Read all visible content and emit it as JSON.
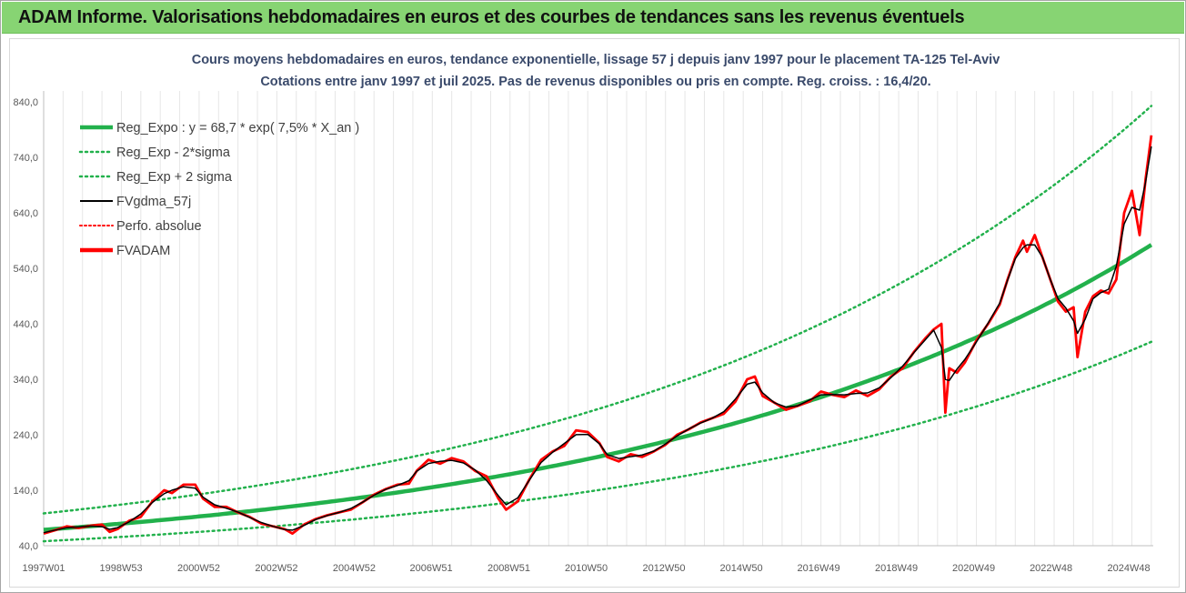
{
  "banner": {
    "title": "ADAM Informe. Valorisations hebdomadaires en euros et des courbes de tendances sans les revenus éventuels",
    "color": "#87d473"
  },
  "chart_data": {
    "type": "line",
    "title_line1": "Cours moyens hebdomadaires en euros, tendance exponentielle, lissage 57 j depuis janv 1997 pour le placement TA-125 Tel-Aviv",
    "title_line2": "Cotations entre janv 1997 et juil 2025. Pas de revenus disponibles ou pris en compte. Reg. croiss. : 16,4/20.",
    "xlabel": "",
    "ylabel": "",
    "x_range": [
      1997.0,
      2025.55
    ],
    "ylim": [
      40,
      860
    ],
    "y_ticks": [
      "40,0",
      "140,0",
      "240,0",
      "340,0",
      "440,0",
      "540,0",
      "640,0",
      "740,0",
      "840,0"
    ],
    "y_tick_values": [
      40,
      140,
      240,
      340,
      440,
      540,
      640,
      740,
      840
    ],
    "x_ticks": [
      {
        "label": "1997W01",
        "x": 1997.0
      },
      {
        "label": "1998W53",
        "x": 1998.99
      },
      {
        "label": "2000W52",
        "x": 2000.99
      },
      {
        "label": "2002W52",
        "x": 2002.99
      },
      {
        "label": "2004W52",
        "x": 2004.99
      },
      {
        "label": "2006W51",
        "x": 2006.97
      },
      {
        "label": "2008W51",
        "x": 2008.97
      },
      {
        "label": "2010W50",
        "x": 2010.96
      },
      {
        "label": "2012W50",
        "x": 2012.96
      },
      {
        "label": "2014W50",
        "x": 2014.95
      },
      {
        "label": "2016W49",
        "x": 2016.94
      },
      {
        "label": "2018W49",
        "x": 2018.94
      },
      {
        "label": "2020W49",
        "x": 2020.93
      },
      {
        "label": "2022W48",
        "x": 2022.92
      },
      {
        "label": "2024W48",
        "x": 2024.92
      }
    ],
    "grid": "vertical",
    "legend_position": "top-left",
    "regression": {
      "a": 68.7,
      "rate": 0.075,
      "x0": 1997.0,
      "sigma_lower_factor": 0.7,
      "sigma_upper_factor": 1.43
    },
    "series": [
      {
        "name": "Reg_Expo : y = 68,7 * exp( 7,5% *  X_an )",
        "style": "solid-thick",
        "color": "#22b14c"
      },
      {
        "name": "Reg_Exp - 2*sigma",
        "style": "dotted",
        "color": "#22b14c"
      },
      {
        "name": "Reg_Exp + 2 sigma",
        "style": "dotted",
        "color": "#22b14c"
      },
      {
        "name": "FVgdma_57j",
        "style": "solid",
        "color": "#000000"
      },
      {
        "name": "Perfo. absolue",
        "style": "dotted",
        "color": "#ff0000"
      },
      {
        "name": "FVADAM",
        "style": "solid-thick",
        "color": "#ff0000",
        "points": [
          [
            1997.0,
            62
          ],
          [
            1997.3,
            68
          ],
          [
            1997.6,
            75
          ],
          [
            1997.9,
            72
          ],
          [
            1998.2,
            76
          ],
          [
            1998.5,
            78
          ],
          [
            1998.7,
            65
          ],
          [
            1998.9,
            70
          ],
          [
            1999.2,
            85
          ],
          [
            1999.5,
            92
          ],
          [
            1999.8,
            120
          ],
          [
            2000.1,
            140
          ],
          [
            2000.3,
            135
          ],
          [
            2000.6,
            150
          ],
          [
            2000.9,
            150
          ],
          [
            2001.1,
            125
          ],
          [
            2001.4,
            110
          ],
          [
            2001.7,
            110
          ],
          [
            2002.0,
            100
          ],
          [
            2002.3,
            92
          ],
          [
            2002.6,
            80
          ],
          [
            2002.9,
            75
          ],
          [
            2003.2,
            70
          ],
          [
            2003.4,
            62
          ],
          [
            2003.7,
            78
          ],
          [
            2004.0,
            88
          ],
          [
            2004.3,
            95
          ],
          [
            2004.6,
            100
          ],
          [
            2004.9,
            105
          ],
          [
            2005.2,
            118
          ],
          [
            2005.5,
            132
          ],
          [
            2005.8,
            142
          ],
          [
            2006.1,
            150
          ],
          [
            2006.4,
            152
          ],
          [
            2006.6,
            175
          ],
          [
            2006.9,
            195
          ],
          [
            2007.2,
            188
          ],
          [
            2007.5,
            198
          ],
          [
            2007.8,
            192
          ],
          [
            2008.1,
            175
          ],
          [
            2008.4,
            165
          ],
          [
            2008.7,
            125
          ],
          [
            2008.9,
            105
          ],
          [
            2009.2,
            120
          ],
          [
            2009.5,
            160
          ],
          [
            2009.8,
            195
          ],
          [
            2010.1,
            210
          ],
          [
            2010.4,
            220
          ],
          [
            2010.7,
            248
          ],
          [
            2011.0,
            245
          ],
          [
            2011.3,
            225
          ],
          [
            2011.5,
            200
          ],
          [
            2011.8,
            192
          ],
          [
            2012.1,
            205
          ],
          [
            2012.4,
            200
          ],
          [
            2012.7,
            210
          ],
          [
            2013.0,
            222
          ],
          [
            2013.3,
            240
          ],
          [
            2013.6,
            250
          ],
          [
            2013.9,
            262
          ],
          [
            2014.2,
            270
          ],
          [
            2014.5,
            278
          ],
          [
            2014.8,
            300
          ],
          [
            2015.1,
            340
          ],
          [
            2015.3,
            345
          ],
          [
            2015.5,
            310
          ],
          [
            2015.8,
            298
          ],
          [
            2016.1,
            285
          ],
          [
            2016.4,
            292
          ],
          [
            2016.7,
            300
          ],
          [
            2017.0,
            318
          ],
          [
            2017.3,
            312
          ],
          [
            2017.6,
            308
          ],
          [
            2017.9,
            320
          ],
          [
            2018.2,
            310
          ],
          [
            2018.5,
            322
          ],
          [
            2018.8,
            345
          ],
          [
            2019.1,
            360
          ],
          [
            2019.4,
            390
          ],
          [
            2019.7,
            415
          ],
          [
            2019.9,
            430
          ],
          [
            2020.1,
            440
          ],
          [
            2020.2,
            280
          ],
          [
            2020.3,
            360
          ],
          [
            2020.5,
            352
          ],
          [
            2020.7,
            370
          ],
          [
            2021.0,
            410
          ],
          [
            2021.3,
            440
          ],
          [
            2021.6,
            475
          ],
          [
            2021.8,
            520
          ],
          [
            2022.0,
            560
          ],
          [
            2022.2,
            590
          ],
          [
            2022.3,
            570
          ],
          [
            2022.5,
            600
          ],
          [
            2022.7,
            560
          ],
          [
            2022.9,
            520
          ],
          [
            2023.1,
            480
          ],
          [
            2023.3,
            462
          ],
          [
            2023.5,
            470
          ],
          [
            2023.6,
            380
          ],
          [
            2023.8,
            462
          ],
          [
            2024.0,
            490
          ],
          [
            2024.2,
            500
          ],
          [
            2024.4,
            495
          ],
          [
            2024.6,
            520
          ],
          [
            2024.8,
            640
          ],
          [
            2025.0,
            680
          ],
          [
            2025.2,
            600
          ],
          [
            2025.35,
            700
          ],
          [
            2025.5,
            780
          ]
        ]
      }
    ]
  }
}
